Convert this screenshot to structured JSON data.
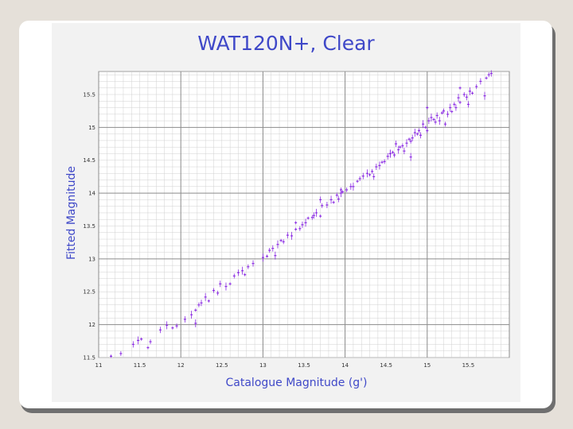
{
  "colors": {
    "points": "#8a2be2",
    "title": "#3f48c8",
    "grid": "#d0d0d0",
    "major_grid": "#8c8c8c"
  },
  "chart_data": {
    "type": "scatter",
    "title": "WAT120N+, Clear",
    "xlabel": "Catalogue Magnitude (g')",
    "ylabel": "Fitted Magnitude",
    "xlim": [
      11,
      16
    ],
    "ylim": [
      11.5,
      15.85
    ],
    "grid": true,
    "x_tick_labels": [
      "11",
      "11.5",
      "12",
      "12.5",
      "13",
      "13.5",
      "14",
      "14.5",
      "15",
      "15.5"
    ],
    "y_tick_labels": [
      "11.5",
      "12",
      "12.5",
      "13",
      "13.5",
      "14",
      "14.5",
      "15",
      "15.5"
    ],
    "points": [
      [
        11.15,
        11.52
      ],
      [
        11.27,
        11.56
      ],
      [
        11.42,
        11.7
      ],
      [
        11.48,
        11.76
      ],
      [
        11.52,
        11.78
      ],
      [
        11.63,
        11.74
      ],
      [
        11.75,
        11.92
      ],
      [
        11.83,
        11.99
      ],
      [
        11.9,
        11.95
      ],
      [
        11.95,
        11.98
      ],
      [
        12.05,
        12.08
      ],
      [
        12.13,
        12.15
      ],
      [
        12.18,
        12.22
      ],
      [
        12.22,
        12.3
      ],
      [
        12.25,
        12.33
      ],
      [
        12.3,
        12.42
      ],
      [
        12.34,
        12.36
      ],
      [
        12.45,
        12.48
      ],
      [
        12.48,
        12.62
      ],
      [
        12.55,
        12.58
      ],
      [
        12.6,
        12.62
      ],
      [
        12.65,
        12.74
      ],
      [
        12.7,
        12.79
      ],
      [
        12.75,
        12.82
      ],
      [
        12.78,
        12.76
      ],
      [
        12.82,
        12.88
      ],
      [
        12.88,
        12.93
      ],
      [
        13.0,
        13.02
      ],
      [
        13.05,
        13.04
      ],
      [
        13.08,
        13.13
      ],
      [
        13.12,
        13.16
      ],
      [
        13.18,
        13.22
      ],
      [
        13.22,
        13.28
      ],
      [
        13.25,
        13.26
      ],
      [
        13.3,
        13.36
      ],
      [
        13.35,
        13.35
      ],
      [
        13.4,
        13.45
      ],
      [
        13.45,
        13.46
      ],
      [
        13.48,
        13.52
      ],
      [
        13.52,
        13.55
      ],
      [
        13.55,
        13.62
      ],
      [
        13.6,
        13.63
      ],
      [
        13.62,
        13.66
      ],
      [
        13.65,
        13.7
      ],
      [
        13.7,
        13.65
      ],
      [
        13.72,
        13.81
      ],
      [
        13.78,
        13.82
      ],
      [
        13.83,
        13.9
      ],
      [
        13.86,
        13.86
      ],
      [
        13.9,
        13.97
      ],
      [
        13.92,
        13.91
      ],
      [
        13.95,
        14.0
      ],
      [
        13.97,
        14.02
      ],
      [
        14.02,
        14.05
      ],
      [
        14.07,
        14.1
      ],
      [
        14.1,
        14.1
      ],
      [
        14.15,
        14.18
      ],
      [
        14.18,
        14.22
      ],
      [
        14.22,
        14.26
      ],
      [
        14.27,
        14.3
      ],
      [
        14.3,
        14.28
      ],
      [
        14.33,
        14.33
      ],
      [
        14.38,
        14.4
      ],
      [
        14.42,
        14.42
      ],
      [
        14.45,
        14.47
      ],
      [
        14.48,
        14.48
      ],
      [
        14.52,
        14.56
      ],
      [
        14.55,
        14.6
      ],
      [
        14.58,
        14.62
      ],
      [
        14.6,
        14.58
      ],
      [
        14.62,
        14.75
      ],
      [
        14.65,
        14.66
      ],
      [
        14.67,
        14.7
      ],
      [
        14.7,
        14.72
      ],
      [
        14.72,
        14.64
      ],
      [
        14.75,
        14.76
      ],
      [
        14.78,
        14.82
      ],
      [
        14.8,
        14.79
      ],
      [
        14.82,
        14.84
      ],
      [
        14.85,
        14.92
      ],
      [
        14.88,
        14.9
      ],
      [
        14.9,
        14.95
      ],
      [
        14.92,
        14.88
      ],
      [
        14.95,
        15.05
      ],
      [
        14.98,
        15.0
      ],
      [
        15.0,
        14.95
      ],
      [
        15.02,
        15.1
      ],
      [
        15.05,
        15.15
      ],
      [
        15.08,
        15.12
      ],
      [
        15.1,
        15.08
      ],
      [
        15.12,
        15.18
      ],
      [
        15.15,
        15.1
      ],
      [
        15.18,
        15.22
      ],
      [
        15.2,
        15.25
      ],
      [
        15.25,
        15.2
      ],
      [
        15.28,
        15.3
      ],
      [
        15.3,
        15.24
      ],
      [
        15.33,
        15.35
      ],
      [
        15.35,
        15.3
      ],
      [
        15.38,
        15.45
      ],
      [
        15.4,
        15.38
      ],
      [
        15.45,
        15.5
      ],
      [
        15.48,
        15.46
      ],
      [
        15.52,
        15.55
      ],
      [
        15.55,
        15.52
      ],
      [
        15.6,
        15.62
      ],
      [
        15.65,
        15.7
      ],
      [
        15.7,
        15.48
      ],
      [
        15.72,
        15.75
      ],
      [
        15.75,
        15.8
      ],
      [
        15.78,
        15.82
      ],
      [
        13.15,
        13.05
      ],
      [
        13.4,
        13.55
      ],
      [
        13.95,
        14.05
      ],
      [
        14.35,
        14.25
      ],
      [
        14.55,
        14.6
      ],
      [
        15.0,
        15.3
      ],
      [
        15.22,
        15.05
      ],
      [
        15.5,
        15.35
      ],
      [
        12.18,
        12.02
      ],
      [
        11.6,
        11.65
      ],
      [
        12.4,
        12.52
      ],
      [
        13.7,
        13.9
      ],
      [
        14.8,
        14.55
      ],
      [
        15.4,
        15.6
      ]
    ]
  }
}
